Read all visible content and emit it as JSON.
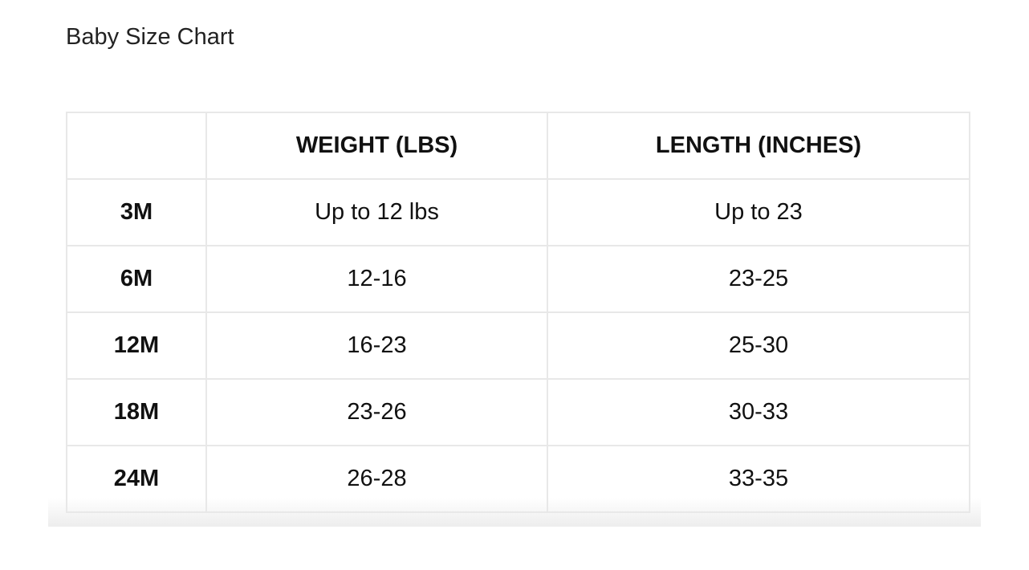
{
  "title": "Baby Size Chart",
  "table": {
    "headers": [
      "",
      "WEIGHT (LBS)",
      "LENGTH (INCHES)"
    ],
    "rows": [
      {
        "size": "3M",
        "weight": "Up to 12 lbs",
        "length": "Up to 23"
      },
      {
        "size": "6M",
        "weight": "12-16",
        "length": "23-25"
      },
      {
        "size": "12M",
        "weight": "16-23",
        "length": "25-30"
      },
      {
        "size": "18M",
        "weight": "23-26",
        "length": "30-33"
      },
      {
        "size": "24M",
        "weight": "26-28",
        "length": "33-35"
      }
    ]
  }
}
